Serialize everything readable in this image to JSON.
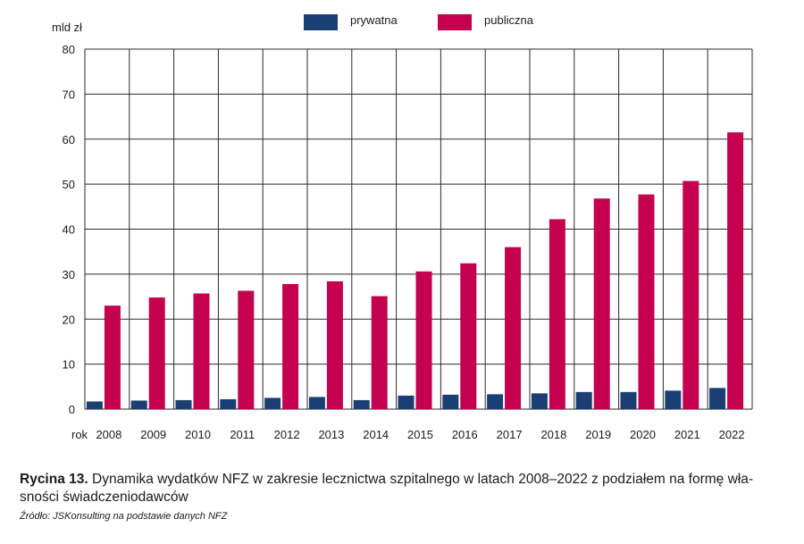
{
  "chart_data": {
    "type": "bar",
    "ylabel": "mld zł",
    "x_prefix": "rok",
    "categories": [
      "2008",
      "2009",
      "2010",
      "2011",
      "2012",
      "2013",
      "2014",
      "2015",
      "2016",
      "2017",
      "2018",
      "2019",
      "2020",
      "2021",
      "2022"
    ],
    "series": [
      {
        "name": "prywatna",
        "color": "#1b3f73",
        "values": [
          1.7,
          1.9,
          2.0,
          2.2,
          2.5,
          2.7,
          2.0,
          3.0,
          3.2,
          3.3,
          3.5,
          3.8,
          3.8,
          4.1,
          4.7
        ]
      },
      {
        "name": "publiczna",
        "color": "#c4004f",
        "values": [
          23.0,
          24.8,
          25.7,
          26.3,
          27.8,
          28.4,
          25.1,
          30.6,
          32.4,
          36.0,
          42.2,
          46.8,
          47.7,
          50.7,
          61.5
        ]
      }
    ],
    "ylim": [
      0,
      80
    ],
    "yticks": [
      0,
      10,
      20,
      30,
      40,
      50,
      60,
      70,
      80
    ],
    "grid": true,
    "legend_position": "top-center"
  },
  "caption": {
    "label": "Rycina 13.",
    "text": "Dynamika wydatków NFZ w zakresie lecznictwa szpitalnego w latach 2008–2022 z podziałem na formę wła-sności świadczeniodawców"
  },
  "source": "Źródło: JSKonsulting na podstawie danych NFZ"
}
